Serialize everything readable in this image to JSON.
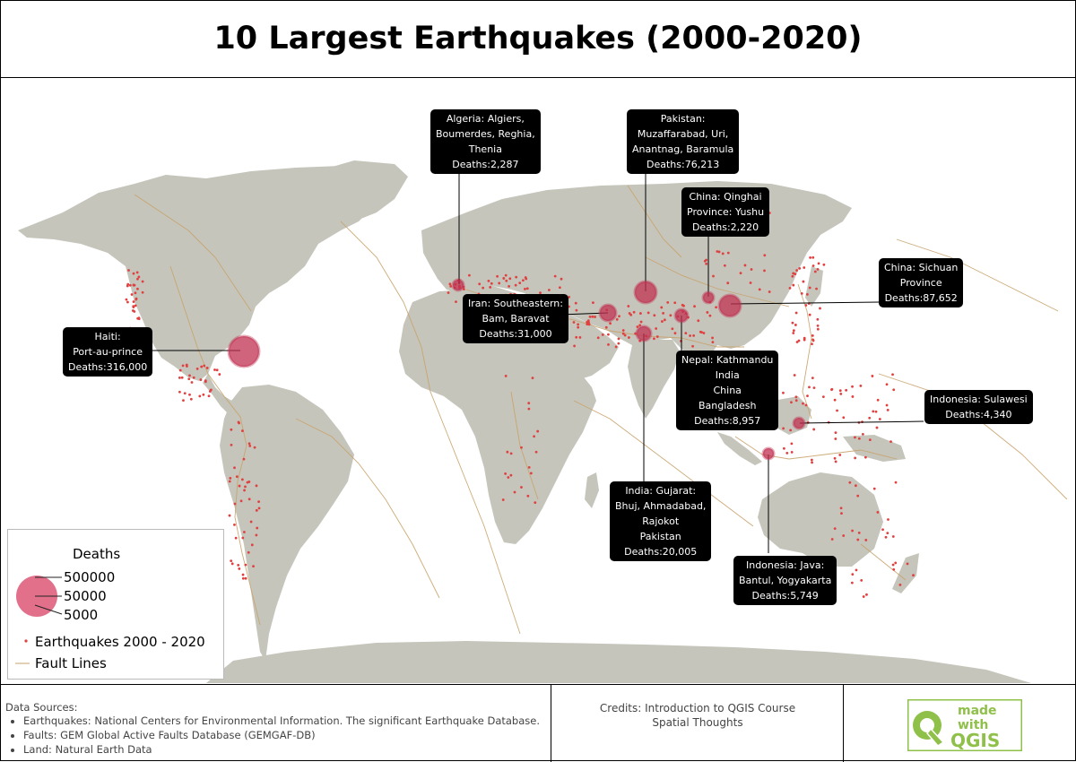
{
  "title": "10 Largest Earthquakes (2000-2020)",
  "colors": {
    "land": "#c5c5bb",
    "fault": "#c8a26a",
    "quake_dot": "#e04040",
    "bubble": "#c03050",
    "legend_bubble": "#e2708a",
    "callout_bg": "#000000",
    "logo_green": "#8fc04a"
  },
  "callouts": [
    {
      "lines": [
        "Haiti:",
        "Port-au-prince",
        "Deaths:316,000"
      ]
    },
    {
      "lines": [
        "Algeria:  Algiers,",
        "Boumerdes, Reghia,",
        "Thenia",
        "Deaths:2,287"
      ]
    },
    {
      "lines": [
        "Pakistan:",
        "Muzaffarabad, Uri,",
        "Anantnag, Baramula",
        "Deaths:76,213"
      ]
    },
    {
      "lines": [
        "China:  Qinghai",
        "Province:  Yushu",
        "Deaths:2,220"
      ]
    },
    {
      "lines": [
        "China:  Sichuan",
        "Province",
        "Deaths:87,652"
      ]
    },
    {
      "lines": [
        "Iran:  Southeastern:",
        "Bam, Baravat",
        "Deaths:31,000"
      ]
    },
    {
      "lines": [
        "Nepal:   Kathmandu",
        "India",
        "China",
        "Bangladesh",
        "Deaths:8,957"
      ]
    },
    {
      "lines": [
        "Indonesia:  Sulawesi",
        "Deaths:4,340"
      ]
    },
    {
      "lines": [
        "India:  Gujarat:",
        "Bhuj, Ahmadabad,",
        "Rajokot",
        "Pakistan",
        "Deaths:20,005"
      ]
    },
    {
      "lines": [
        "Indonesia:  Java:",
        "Bantul, Yogyakarta",
        "Deaths:5,749"
      ]
    }
  ],
  "legend": {
    "title": "Deaths",
    "sizes": [
      "500000",
      "50000",
      "5000"
    ],
    "earthquakes_label": "Earthquakes 2000 - 2020",
    "faults_label": "Fault Lines"
  },
  "footer": {
    "sources_title": "Data Sources:",
    "sources": [
      "Earthquakes: National Centers for Environmental Information. The significant Earthquake Database.",
      "Faults: GEM Global Active Faults Database (GEMGAF-DB)",
      "Land: Natural Earth Data"
    ],
    "credits": [
      "Credits: Introduction to QGIS Course",
      "Spatial Thoughts"
    ],
    "logo": {
      "line1": "made",
      "line2": "with",
      "line3": "QGIS",
      "icon": "qgis-logo-icon"
    }
  }
}
